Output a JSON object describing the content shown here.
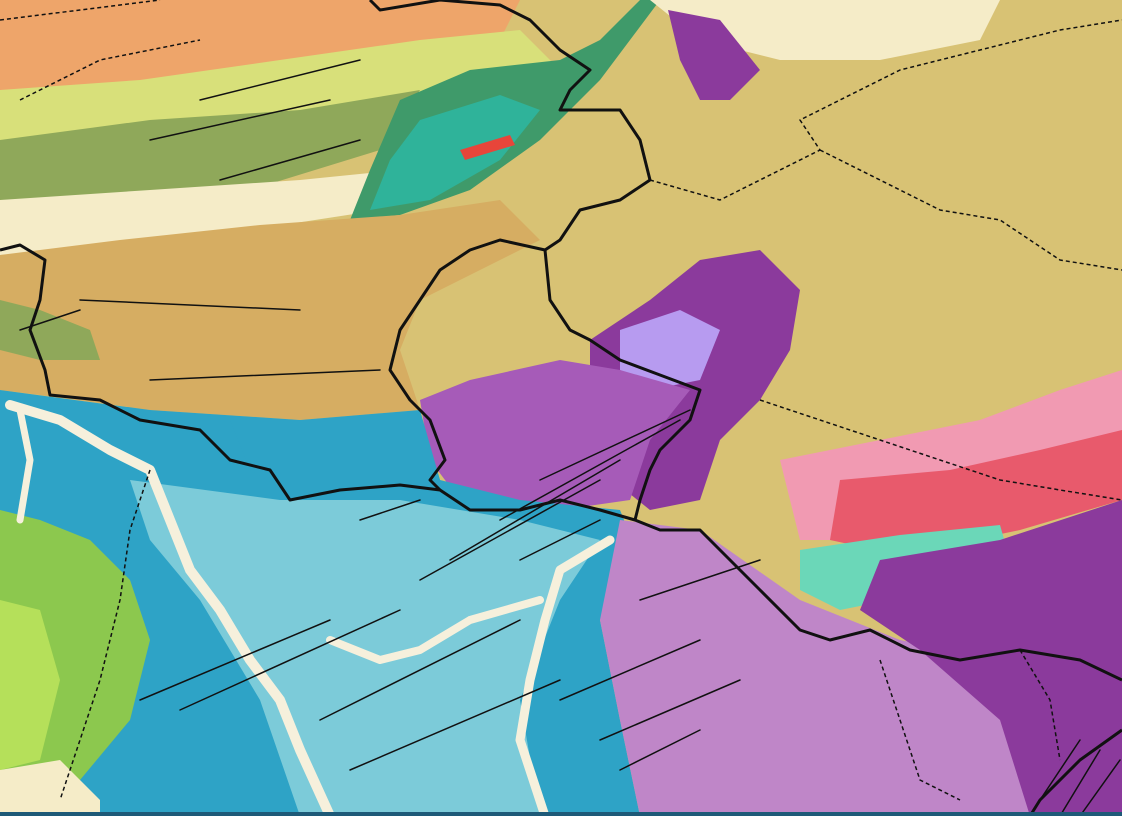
{
  "map": {
    "kind": "geological map",
    "colors": {
      "orange_upland": "#eea56a",
      "yellow_green": "#d8e07a",
      "olive_green": "#8fa85a",
      "ochre": "#d6ad62",
      "khaki": "#d8c274",
      "cream": "#f5ecc8",
      "dark_green": "#3f9a6a",
      "teal": "#2fb39a",
      "red": "#e8453a",
      "purple_dark": "#8b3a9c",
      "purple": "#a65bb8",
      "purple_light": "#bf86c8",
      "lavender": "#b79bf0",
      "blue": "#2ea3c6",
      "blue_light": "#7ccbd9",
      "river": "#f6f0dc",
      "green": "#8cc84e",
      "lime": "#b5e05a",
      "pink": "#f19ab2",
      "rose": "#e85a6c",
      "mint": "#6bd7b8",
      "boundary": "#111111",
      "bottom_bar": "#1e5a78"
    }
  }
}
